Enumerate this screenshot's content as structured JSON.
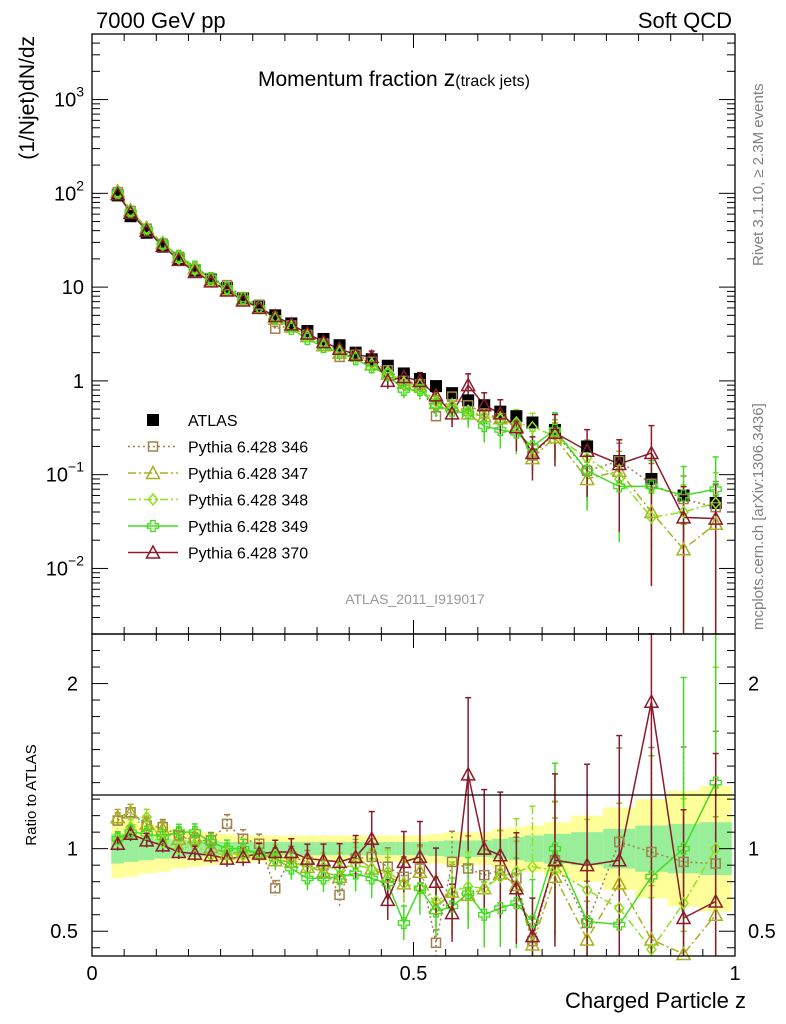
{
  "header": {
    "left": "7000 GeV pp",
    "right": "Soft QCD"
  },
  "side_text": {
    "top": "Rivet 3.1.10, ≥ 2.3M events",
    "bottom": "mcplots.cern.ch [arXiv:1306.3436]"
  },
  "chart_data": {
    "type": "scatter",
    "title": "Momentum fraction",
    "title_symbol": "z",
    "title_sub": "(track jets)",
    "ylabel": "(1/Njet)dN/dz",
    "xlabel": "Charged Particle z",
    "analysis_label": "ATLAS_2011_I919017",
    "yscale": "log",
    "xlim": [
      0,
      1
    ],
    "ylim": [
      0.002,
      5000
    ],
    "x_ticks": [
      "0",
      "0.5",
      "1"
    ],
    "y_ticks": {
      "1000": "10^3",
      "100": "10^2",
      "10": "10",
      "1": "1",
      "0.1": "10^-1",
      "0.01": "10^-2"
    },
    "legend_position": "middle-left",
    "x": [
      0.04,
      0.06,
      0.085,
      0.11,
      0.135,
      0.16,
      0.185,
      0.21,
      0.235,
      0.26,
      0.285,
      0.31,
      0.335,
      0.36,
      0.385,
      0.41,
      0.435,
      0.46,
      0.485,
      0.51,
      0.535,
      0.56,
      0.585,
      0.61,
      0.635,
      0.66,
      0.685,
      0.72,
      0.77,
      0.82,
      0.87,
      0.92,
      0.97
    ],
    "series": [
      {
        "name": "ATLAS",
        "marker": "filled-square",
        "color": "#000000",
        "values": [
          95,
          57,
          38,
          27,
          20,
          15,
          12,
          9.8,
          7.6,
          6.2,
          5.0,
          4.1,
          3.4,
          2.8,
          2.4,
          2.0,
          1.7,
          1.45,
          1.2,
          1.05,
          0.88,
          0.74,
          0.62,
          0.55,
          0.47,
          0.42,
          0.36,
          0.3,
          0.2,
          0.14,
          0.09,
          0.06,
          0.05
        ]
      },
      {
        "name": "Pythia 6.428 346",
        "marker": "open-square",
        "color": "#a0804a",
        "line": "dotted",
        "values": [
          103,
          65,
          42,
          29,
          21,
          15.5,
          12.5,
          10.5,
          7.8,
          6.5,
          3.6,
          3.9,
          3.1,
          2.5,
          1.8,
          1.9,
          1.6,
          1.3,
          1.0,
          0.92,
          0.42,
          0.68,
          0.55,
          0.45,
          0.4,
          0.32,
          0.16,
          0.28,
          0.11,
          0.14,
          0.08,
          0.055,
          0.045
        ]
      },
      {
        "name": "Pythia 6.428 347",
        "marker": "open-triangle",
        "color": "#a8b020",
        "line": "dashdot",
        "values": [
          105,
          66,
          43,
          29.5,
          21,
          16,
          12,
          9.5,
          7.5,
          6.1,
          4.6,
          3.8,
          3.0,
          2.4,
          2.0,
          1.9,
          1.5,
          1.2,
          0.95,
          0.9,
          0.58,
          0.55,
          0.45,
          0.42,
          0.4,
          0.33,
          0.15,
          0.25,
          0.09,
          0.11,
          0.04,
          0.016,
          0.03
        ]
      },
      {
        "name": "Pythia 6.428 348",
        "marker": "open-diamond",
        "color": "#90e020",
        "line": "dashdot",
        "values": [
          100,
          64,
          42,
          28,
          20,
          15.2,
          11.5,
          9.5,
          7.3,
          6.0,
          4.8,
          3.8,
          3.0,
          2.5,
          2.1,
          1.8,
          1.5,
          1.25,
          0.95,
          0.8,
          0.6,
          0.55,
          0.48,
          0.42,
          0.39,
          0.36,
          0.32,
          0.26,
          0.15,
          0.09,
          0.035,
          0.04,
          0.05
        ]
      },
      {
        "name": "Pythia 6.428 349",
        "marker": "open-cross",
        "color": "#40dd20",
        "line": "solid",
        "values": [
          101,
          63,
          41,
          29,
          21.5,
          16.5,
          12.5,
          9.8,
          7.6,
          6.0,
          4.7,
          3.6,
          2.8,
          2.3,
          2.0,
          1.7,
          1.4,
          1.15,
          0.8,
          0.8,
          0.55,
          0.48,
          0.45,
          0.33,
          0.3,
          0.28,
          0.2,
          0.3,
          0.11,
          0.075,
          0.075,
          0.06,
          0.07
        ]
      },
      {
        "name": "Pythia 6.428 370",
        "marker": "open-triangle",
        "color": "#8b1a2a",
        "line": "solid",
        "values": [
          98,
          62,
          40,
          27.5,
          19.5,
          14.5,
          11.5,
          9.2,
          7.2,
          6.0,
          4.9,
          4.0,
          3.2,
          2.6,
          2.2,
          1.9,
          1.8,
          1.0,
          1.1,
          1.0,
          0.7,
          0.45,
          0.9,
          0.55,
          0.45,
          0.32,
          0.17,
          0.28,
          0.18,
          0.13,
          0.17,
          0.035,
          0.034
        ]
      }
    ]
  },
  "ratio_data": {
    "ylabel": "Ratio to ATLAS",
    "ylim": [
      0.35,
      2.3
    ],
    "y_ticks": [
      "0.5",
      "1",
      "2"
    ],
    "reference_line": 1,
    "band_yellow_halfwidth": [
      0.18,
      0.17,
      0.15,
      0.14,
      0.12,
      0.11,
      0.1,
      0.09,
      0.08,
      0.08,
      0.08,
      0.08,
      0.08,
      0.08,
      0.08,
      0.08,
      0.08,
      0.08,
      0.08,
      0.08,
      0.09,
      0.1,
      0.1,
      0.1,
      0.12,
      0.13,
      0.14,
      0.16,
      0.2,
      0.25,
      0.3,
      0.35,
      0.38
    ],
    "band_green_halfwidth": [
      0.09,
      0.08,
      0.07,
      0.06,
      0.055,
      0.05,
      0.045,
      0.04,
      0.04,
      0.04,
      0.04,
      0.04,
      0.04,
      0.04,
      0.04,
      0.04,
      0.04,
      0.04,
      0.04,
      0.04,
      0.045,
      0.05,
      0.05,
      0.05,
      0.06,
      0.07,
      0.08,
      0.09,
      0.1,
      0.12,
      0.14,
      0.15,
      0.16
    ],
    "series": [
      {
        "name": "Pythia 6.428 346",
        "values": [
          1.17,
          1.22,
          1.14,
          1.13,
          1.08,
          1.05,
          1.05,
          1.15,
          1.06,
          1.03,
          0.76,
          0.95,
          0.92,
          0.9,
          0.72,
          0.94,
          0.95,
          0.89,
          0.83,
          0.88,
          0.43,
          0.92,
          0.88,
          0.84,
          0.87,
          0.82,
          0.44,
          0.93,
          0.55,
          1.04,
          0.98,
          0.92,
          0.91
        ]
      },
      {
        "name": "Pythia 6.428 347",
        "values": [
          1.19,
          1.22,
          1.15,
          1.12,
          1.06,
          1.07,
          1.01,
          0.97,
          0.98,
          0.98,
          0.93,
          0.92,
          0.89,
          0.86,
          0.83,
          0.95,
          0.88,
          0.83,
          0.79,
          0.86,
          0.64,
          0.74,
          0.72,
          0.76,
          0.85,
          0.78,
          0.42,
          0.83,
          0.45,
          0.79,
          0.45,
          0.27,
          0.6
        ]
      },
      {
        "name": "Pythia 6.428 348",
        "values": [
          1.05,
          1.13,
          1.19,
          1.04,
          1.0,
          1.02,
          0.96,
          0.97,
          0.96,
          0.97,
          0.96,
          0.93,
          0.88,
          0.89,
          0.88,
          0.9,
          0.88,
          0.86,
          0.79,
          0.76,
          0.68,
          0.74,
          0.77,
          0.76,
          0.83,
          0.86,
          0.89,
          0.87,
          0.75,
          0.64,
          0.39,
          0.67,
          1.0
        ]
      },
      {
        "name": "Pythia 6.428 349",
        "values": [
          1.06,
          1.1,
          1.09,
          1.07,
          1.1,
          1.1,
          1.04,
          1.0,
          1.0,
          0.97,
          0.94,
          0.88,
          0.82,
          0.82,
          0.83,
          0.85,
          0.82,
          0.79,
          0.55,
          0.76,
          0.62,
          0.65,
          0.73,
          0.6,
          0.64,
          0.67,
          0.56,
          1.0,
          0.56,
          0.54,
          0.83,
          1.0,
          1.4
        ]
      },
      {
        "name": "Pythia 6.428 370",
        "values": [
          1.03,
          1.09,
          1.05,
          1.02,
          0.98,
          0.97,
          0.96,
          0.94,
          0.95,
          0.97,
          0.98,
          0.98,
          0.94,
          0.93,
          0.92,
          0.95,
          1.06,
          0.69,
          0.92,
          0.95,
          0.8,
          0.61,
          1.45,
          1.0,
          0.96,
          0.76,
          0.47,
          0.93,
          0.9,
          0.93,
          1.89,
          0.58,
          0.68
        ]
      }
    ]
  }
}
